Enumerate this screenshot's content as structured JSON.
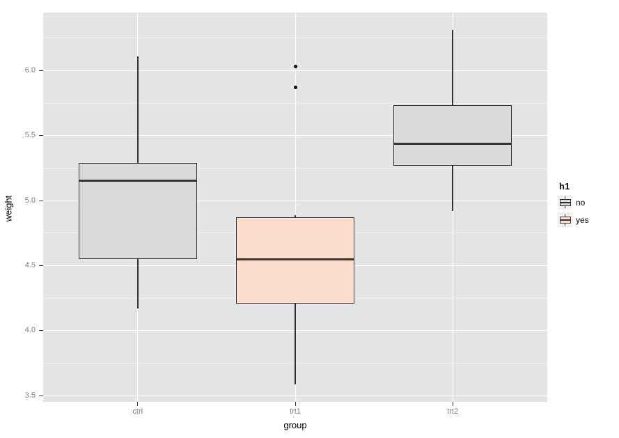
{
  "chart_data": {
    "type": "boxplot",
    "title": "",
    "xlabel": "group",
    "ylabel": "weight",
    "categories": [
      "ctrl",
      "trt1",
      "trt2"
    ],
    "ylim": [
      3.454,
      6.446
    ],
    "yticks": [
      3.5,
      4.0,
      4.5,
      5.0,
      5.5,
      6.0
    ],
    "ytick_labels": [
      "3.5",
      "4.0",
      "4.5",
      "5.0",
      "5.5",
      "6.0"
    ],
    "yticks_minor": [
      3.75,
      4.25,
      4.75,
      5.25,
      5.75,
      6.25
    ],
    "grid": "on",
    "series": [
      {
        "category": "ctrl",
        "fill_group": "no",
        "lower_whisker": 4.17,
        "q1": 4.55,
        "median": 5.155,
        "q3": 5.2925,
        "upper_whisker": 6.11,
        "outliers": []
      },
      {
        "category": "trt1",
        "fill_group": "yes",
        "lower_whisker": 3.59,
        "q1": 4.2075,
        "median": 4.55,
        "q3": 4.87,
        "upper_whisker": 4.89,
        "outliers": [
          5.87,
          6.03
        ]
      },
      {
        "category": "trt2",
        "fill_group": "no",
        "lower_whisker": 4.92,
        "q1": 5.2675,
        "median": 5.435,
        "q3": 5.735,
        "upper_whisker": 6.31,
        "outliers": []
      }
    ],
    "legend": {
      "title": "h1",
      "position": "right",
      "entries": [
        {
          "label": "no",
          "fill": "#D9D9D9"
        },
        {
          "label": "yes",
          "fill": "#FCDCCB"
        }
      ]
    },
    "colors": {
      "panel_bg": "#E5E5E5",
      "grid_major": "#FFFFFF",
      "grid_minor": "#F0F0F0",
      "box_outline": "#333333",
      "median_line": "#333333",
      "outlier": "#000000",
      "tick_mark": "#333333",
      "tick_label": "#7E7E7E",
      "axis_title": "#000000",
      "legend_key_bg": "#F2F2F2"
    }
  }
}
